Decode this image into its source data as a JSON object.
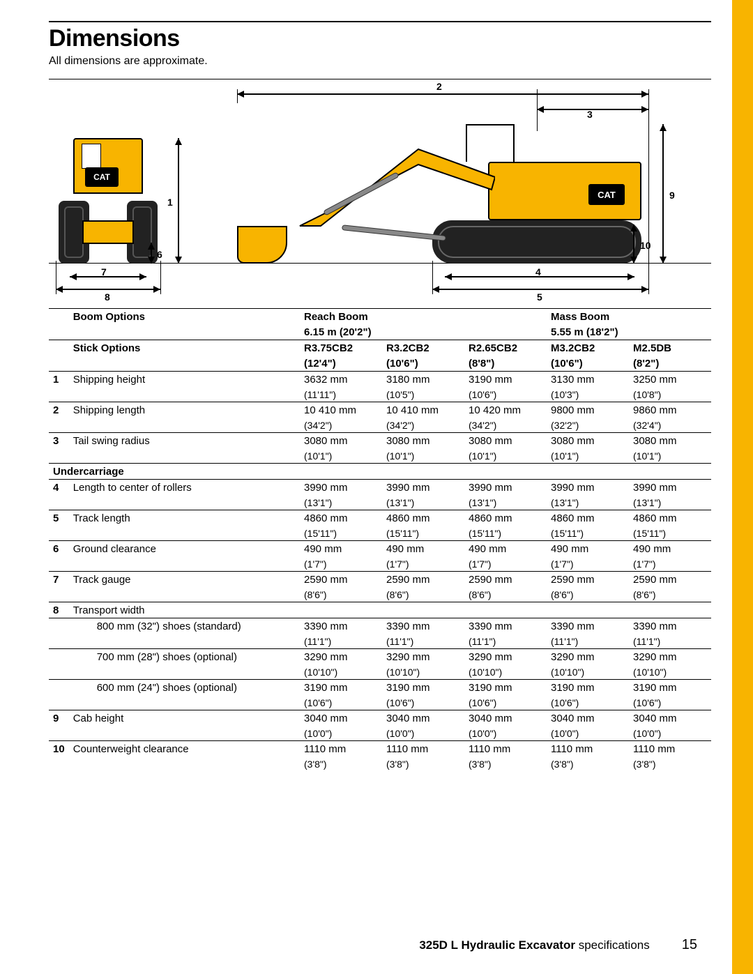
{
  "colors": {
    "accent": "#f8b400",
    "text": "#000000",
    "bg": "#ffffff",
    "track": "#222222"
  },
  "header": {
    "title": "Dimensions",
    "subtitle": "All dimensions are approximate."
  },
  "brand": "CAT",
  "diagram_labels": {
    "n1": "1",
    "n2": "2",
    "n3": "3",
    "n4": "4",
    "n5": "5",
    "n6": "6",
    "n7": "7",
    "n8": "8",
    "n9": "9",
    "n10": "10"
  },
  "table": {
    "boom_options_label": "Boom Options",
    "reach_boom_label": "Reach Boom",
    "reach_boom_size": "6.15 m (20'2\")",
    "mass_boom_label": "Mass Boom",
    "mass_boom_size": "5.55 m (18'2\")",
    "stick_options_label": "Stick Options",
    "sticks": [
      {
        "code": "R3.75CB2",
        "size": "(12'4\")"
      },
      {
        "code": "R3.2CB2",
        "size": "(10'6\")"
      },
      {
        "code": "R2.65CB2",
        "size": "(8'8\")"
      },
      {
        "code": "M3.2CB2",
        "size": "(10'6\")"
      },
      {
        "code": "M2.5DB",
        "size": "(8'2\")"
      }
    ],
    "undercarriage_label": "Undercarriage",
    "rows": [
      {
        "num": "1",
        "label": "Shipping height",
        "v": [
          [
            "3632 mm",
            "(11'11\")"
          ],
          [
            "3180 mm",
            "(10'5\")"
          ],
          [
            "3190 mm",
            "(10'6\")"
          ],
          [
            "3130 mm",
            "(10'3\")"
          ],
          [
            "3250 mm",
            "(10'8\")"
          ]
        ]
      },
      {
        "num": "2",
        "label": "Shipping length",
        "v": [
          [
            "10 410 mm",
            "(34'2\")"
          ],
          [
            "10 410 mm",
            "(34'2\")"
          ],
          [
            "10 420 mm",
            "(34'2\")"
          ],
          [
            "9800 mm",
            "(32'2\")"
          ],
          [
            "9860 mm",
            "(32'4\")"
          ]
        ]
      },
      {
        "num": "3",
        "label": "Tail swing radius",
        "v": [
          [
            "3080 mm",
            "(10'1\")"
          ],
          [
            "3080 mm",
            "(10'1\")"
          ],
          [
            "3080 mm",
            "(10'1\")"
          ],
          [
            "3080 mm",
            "(10'1\")"
          ],
          [
            "3080 mm",
            "(10'1\")"
          ]
        ]
      },
      {
        "num": "4",
        "label": "Length to center of rollers",
        "v": [
          [
            "3990 mm",
            "(13'1\")"
          ],
          [
            "3990 mm",
            "(13'1\")"
          ],
          [
            "3990 mm",
            "(13'1\")"
          ],
          [
            "3990 mm",
            "(13'1\")"
          ],
          [
            "3990 mm",
            "(13'1\")"
          ]
        ]
      },
      {
        "num": "5",
        "label": "Track length",
        "v": [
          [
            "4860 mm",
            "(15'11\")"
          ],
          [
            "4860 mm",
            "(15'11\")"
          ],
          [
            "4860 mm",
            "(15'11\")"
          ],
          [
            "4860 mm",
            "(15'11\")"
          ],
          [
            "4860 mm",
            "(15'11\")"
          ]
        ]
      },
      {
        "num": "6",
        "label": "Ground clearance",
        "v": [
          [
            "490 mm",
            "(1'7\")"
          ],
          [
            "490 mm",
            "(1'7\")"
          ],
          [
            "490 mm",
            "(1'7\")"
          ],
          [
            "490 mm",
            "(1'7\")"
          ],
          [
            "490 mm",
            "(1'7\")"
          ]
        ]
      },
      {
        "num": "7",
        "label": "Track gauge",
        "v": [
          [
            "2590 mm",
            "(8'6\")"
          ],
          [
            "2590 mm",
            "(8'6\")"
          ],
          [
            "2590 mm",
            "(8'6\")"
          ],
          [
            "2590 mm",
            "(8'6\")"
          ],
          [
            "2590 mm",
            "(8'6\")"
          ]
        ]
      },
      {
        "num": "8",
        "label": "Transport width",
        "no_values": true
      },
      {
        "sublabel": "800 mm (32\") shoes (standard)",
        "v": [
          [
            "3390 mm",
            "(11'1\")"
          ],
          [
            "3390 mm",
            "(11'1\")"
          ],
          [
            "3390 mm",
            "(11'1\")"
          ],
          [
            "3390 mm",
            "(11'1\")"
          ],
          [
            "3390 mm",
            "(11'1\")"
          ]
        ]
      },
      {
        "sublabel": "700 mm (28\") shoes (optional)",
        "v": [
          [
            "3290 mm",
            "(10'10\")"
          ],
          [
            "3290 mm",
            "(10'10\")"
          ],
          [
            "3290 mm",
            "(10'10\")"
          ],
          [
            "3290 mm",
            "(10'10\")"
          ],
          [
            "3290 mm",
            "(10'10\")"
          ]
        ]
      },
      {
        "sublabel": "600 mm (24\") shoes (optional)",
        "v": [
          [
            "3190 mm",
            "(10'6\")"
          ],
          [
            "3190 mm",
            "(10'6\")"
          ],
          [
            "3190 mm",
            "(10'6\")"
          ],
          [
            "3190 mm",
            "(10'6\")"
          ],
          [
            "3190 mm",
            "(10'6\")"
          ]
        ]
      },
      {
        "num": "9",
        "label": "Cab height",
        "v": [
          [
            "3040 mm",
            "(10'0\")"
          ],
          [
            "3040 mm",
            "(10'0\")"
          ],
          [
            "3040 mm",
            "(10'0\")"
          ],
          [
            "3040 mm",
            "(10'0\")"
          ],
          [
            "3040 mm",
            "(10'0\")"
          ]
        ]
      },
      {
        "num": "10",
        "label": "Counterweight clearance",
        "v": [
          [
            "1110 mm",
            "(3'8\")"
          ],
          [
            "1110 mm",
            "(3'8\")"
          ],
          [
            "1110 mm",
            "(3'8\")"
          ],
          [
            "1110 mm",
            "(3'8\")"
          ],
          [
            "1110 mm",
            "(3'8\")"
          ]
        ]
      }
    ]
  },
  "footer": {
    "model": "325D L Hydraulic Excavator",
    "suffix": "specifications",
    "page": "15"
  }
}
